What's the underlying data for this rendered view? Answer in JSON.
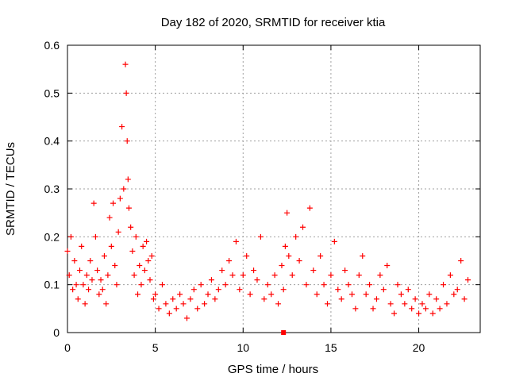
{
  "chart_data": {
    "type": "scatter",
    "title": "Day 182 of 2020, SRMTID for receiver ktia",
    "xlabel": "GPS time / hours",
    "ylabel": "SRMTID / TECUs",
    "xlim": [
      0,
      23.5
    ],
    "ylim": [
      0,
      0.6
    ],
    "x_ticks": [
      "0",
      "5",
      "10",
      "15",
      "20"
    ],
    "y_ticks": [
      "0",
      "0.1",
      "0.2",
      "0.3",
      "0.4",
      "0.5",
      "0.6"
    ],
    "grid": true,
    "marker": "plus",
    "color": "#ff0000",
    "series": [
      {
        "name": "SRMTID",
        "x": [
          0.0,
          0.1,
          0.2,
          0.3,
          0.4,
          0.5,
          0.6,
          0.7,
          0.8,
          0.9,
          1.0,
          1.1,
          1.2,
          1.3,
          1.4,
          1.5,
          1.6,
          1.7,
          1.8,
          1.9,
          2.0,
          2.1,
          2.2,
          2.3,
          2.4,
          2.5,
          2.6,
          2.7,
          2.8,
          2.9,
          3.0,
          3.1,
          3.2,
          3.3,
          3.35,
          3.4,
          3.45,
          3.5,
          3.6,
          3.7,
          3.8,
          3.9,
          4.0,
          4.1,
          4.2,
          4.3,
          4.4,
          4.5,
          4.6,
          4.7,
          4.8,
          4.9,
          5.0,
          5.2,
          5.4,
          5.6,
          5.8,
          6.0,
          6.2,
          6.4,
          6.6,
          6.8,
          7.0,
          7.2,
          7.4,
          7.6,
          7.8,
          8.0,
          8.2,
          8.4,
          8.6,
          8.8,
          9.0,
          9.2,
          9.4,
          9.6,
          9.8,
          10.0,
          10.2,
          10.4,
          10.6,
          10.8,
          11.0,
          11.2,
          11.4,
          11.6,
          11.8,
          12.0,
          12.2,
          12.3,
          12.4,
          12.5,
          12.6,
          12.8,
          13.0,
          13.2,
          13.4,
          13.6,
          13.8,
          14.0,
          14.2,
          14.4,
          14.6,
          14.8,
          15.0,
          15.2,
          15.4,
          15.6,
          15.8,
          16.0,
          16.2,
          16.4,
          16.6,
          16.8,
          17.0,
          17.2,
          17.4,
          17.6,
          17.8,
          18.0,
          18.2,
          18.4,
          18.6,
          18.8,
          19.0,
          19.2,
          19.4,
          19.6,
          19.8,
          20.0,
          20.2,
          20.4,
          20.6,
          20.8,
          21.0,
          21.2,
          21.4,
          21.6,
          21.8,
          22.0,
          22.2,
          22.4,
          22.6,
          22.8
        ],
        "y": [
          0.17,
          0.12,
          0.2,
          0.09,
          0.15,
          0.1,
          0.07,
          0.13,
          0.18,
          0.1,
          0.06,
          0.12,
          0.09,
          0.15,
          0.11,
          0.27,
          0.2,
          0.13,
          0.08,
          0.11,
          0.09,
          0.16,
          0.06,
          0.12,
          0.24,
          0.18,
          0.27,
          0.14,
          0.1,
          0.21,
          0.28,
          0.43,
          0.3,
          0.56,
          0.5,
          0.4,
          0.32,
          0.26,
          0.22,
          0.17,
          0.12,
          0.2,
          0.08,
          0.14,
          0.1,
          0.18,
          0.13,
          0.19,
          0.15,
          0.11,
          0.16,
          0.07,
          0.08,
          0.05,
          0.1,
          0.06,
          0.04,
          0.07,
          0.05,
          0.08,
          0.06,
          0.03,
          0.07,
          0.09,
          0.05,
          0.1,
          0.06,
          0.08,
          0.11,
          0.07,
          0.09,
          0.13,
          0.1,
          0.15,
          0.12,
          0.19,
          0.09,
          0.12,
          0.16,
          0.08,
          0.13,
          0.11,
          0.2,
          0.07,
          0.1,
          0.08,
          0.12,
          0.06,
          0.14,
          0.09,
          0.18,
          0.25,
          0.16,
          0.12,
          0.2,
          0.15,
          0.22,
          0.1,
          0.26,
          0.13,
          0.08,
          0.16,
          0.1,
          0.06,
          0.12,
          0.19,
          0.09,
          0.07,
          0.13,
          0.1,
          0.08,
          0.05,
          0.12,
          0.16,
          0.08,
          0.1,
          0.05,
          0.07,
          0.12,
          0.09,
          0.14,
          0.06,
          0.04,
          0.1,
          0.08,
          0.06,
          0.09,
          0.05,
          0.07,
          0.04,
          0.06,
          0.05,
          0.08,
          0.04,
          0.07,
          0.05,
          0.1,
          0.06,
          0.12,
          0.08,
          0.09,
          0.15,
          0.07,
          0.11
        ]
      }
    ],
    "annotations": [
      {
        "type": "marker",
        "x": 12.3,
        "y": 0.0,
        "shape": "square"
      }
    ]
  }
}
